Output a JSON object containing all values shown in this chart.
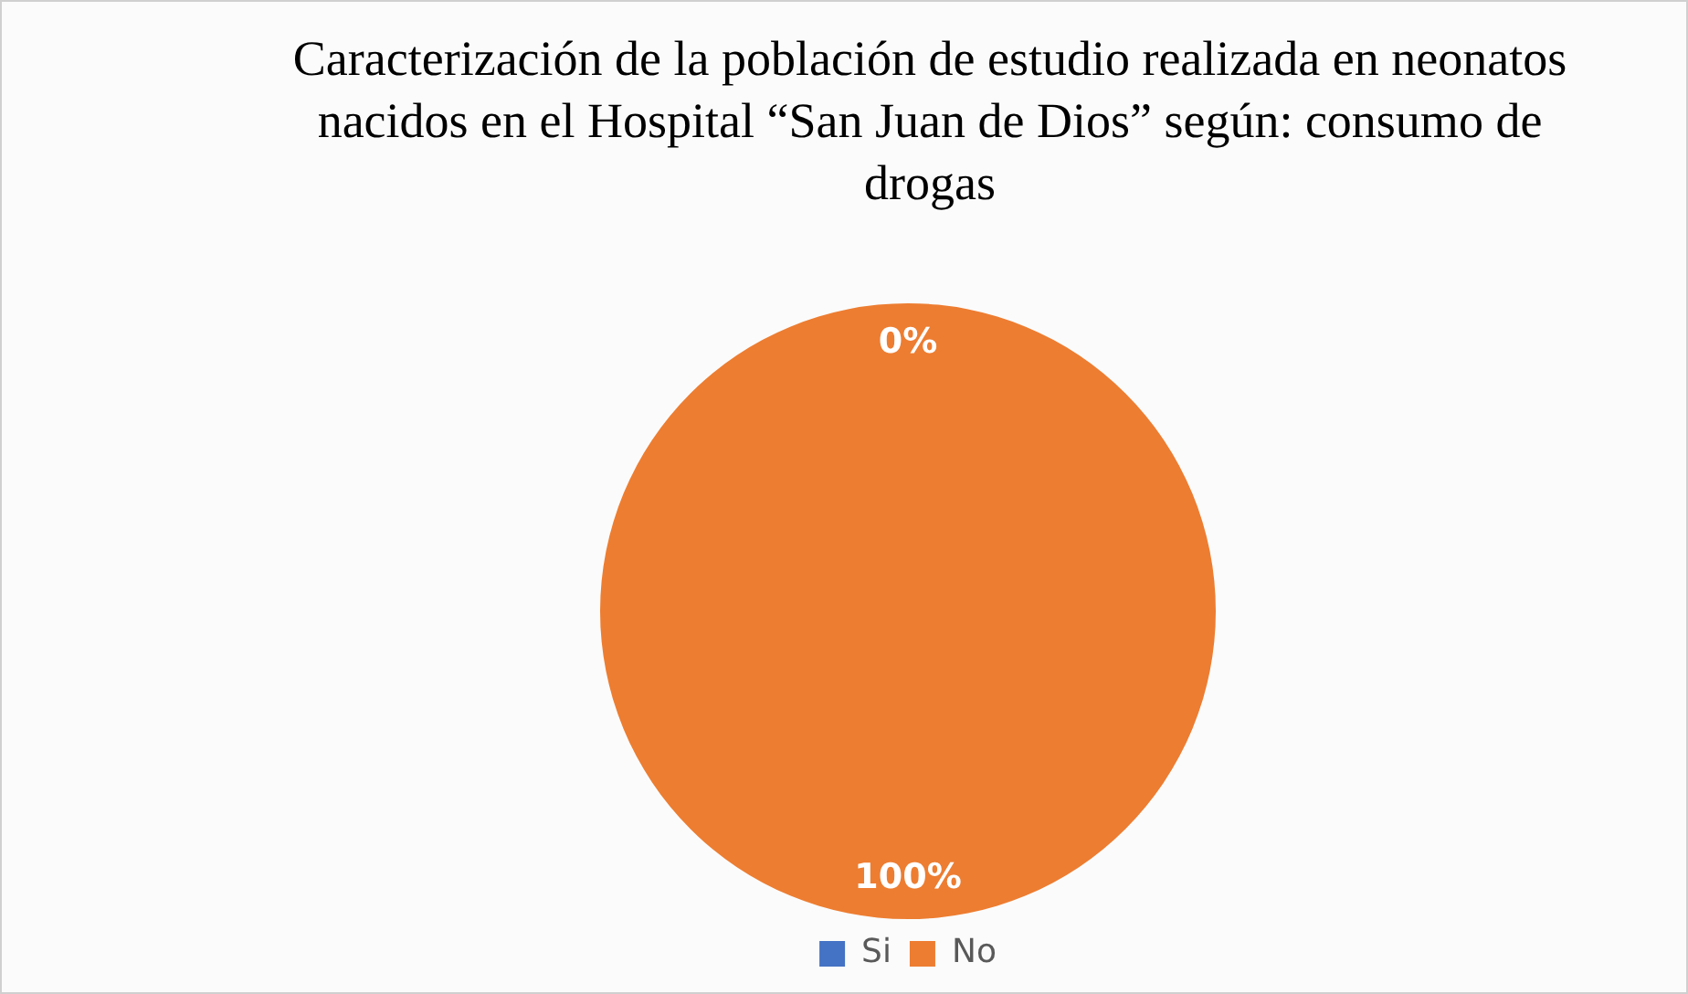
{
  "chart_data": {
    "type": "pie",
    "title": "Caracterización de la población de estudio realizada en neonatos nacidos en el Hospital “San Juan de Dios” según: consumo de drogas",
    "categories": [
      "Si",
      "No"
    ],
    "values": [
      0,
      100
    ],
    "colors": [
      "#4472c4",
      "#ed7d31"
    ],
    "value_labels": [
      "0%",
      "100%"
    ],
    "legend": "bottom"
  }
}
